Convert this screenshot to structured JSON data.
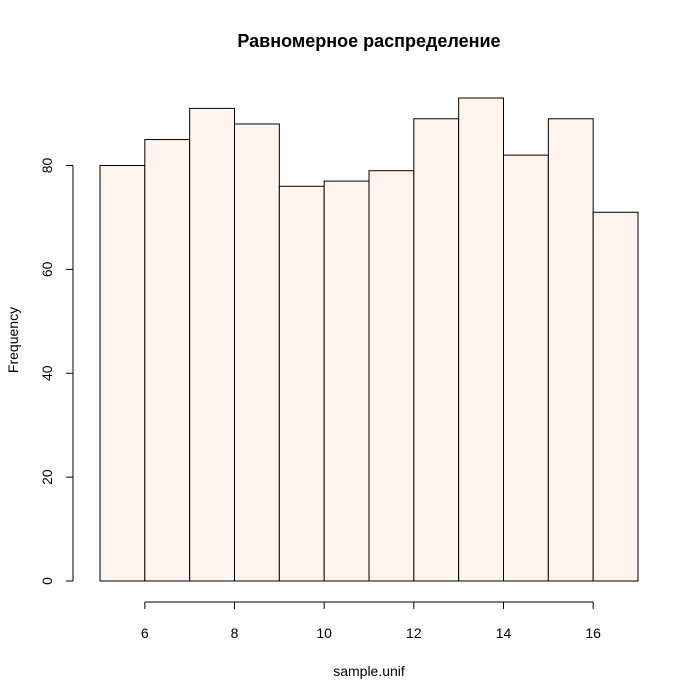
{
  "chart_data": {
    "type": "bar",
    "title": "Равномерное распределение",
    "xlabel": "sample.unif",
    "ylabel": "Frequency",
    "bin_edges": [
      5,
      6,
      7,
      8,
      9,
      10,
      11,
      12,
      13,
      14,
      15,
      16,
      17
    ],
    "values": [
      80,
      85,
      91,
      88,
      76,
      77,
      79,
      89,
      93,
      82,
      89,
      71
    ],
    "xlim": [
      5,
      17
    ],
    "ylim": [
      0,
      93
    ],
    "x_ticks": [
      6,
      8,
      10,
      12,
      14,
      16
    ],
    "y_ticks": [
      0,
      20,
      40,
      60,
      80
    ],
    "bar_fill": "#fff5ee",
    "bar_stroke": "#000000",
    "grid": false,
    "legend": "none"
  }
}
